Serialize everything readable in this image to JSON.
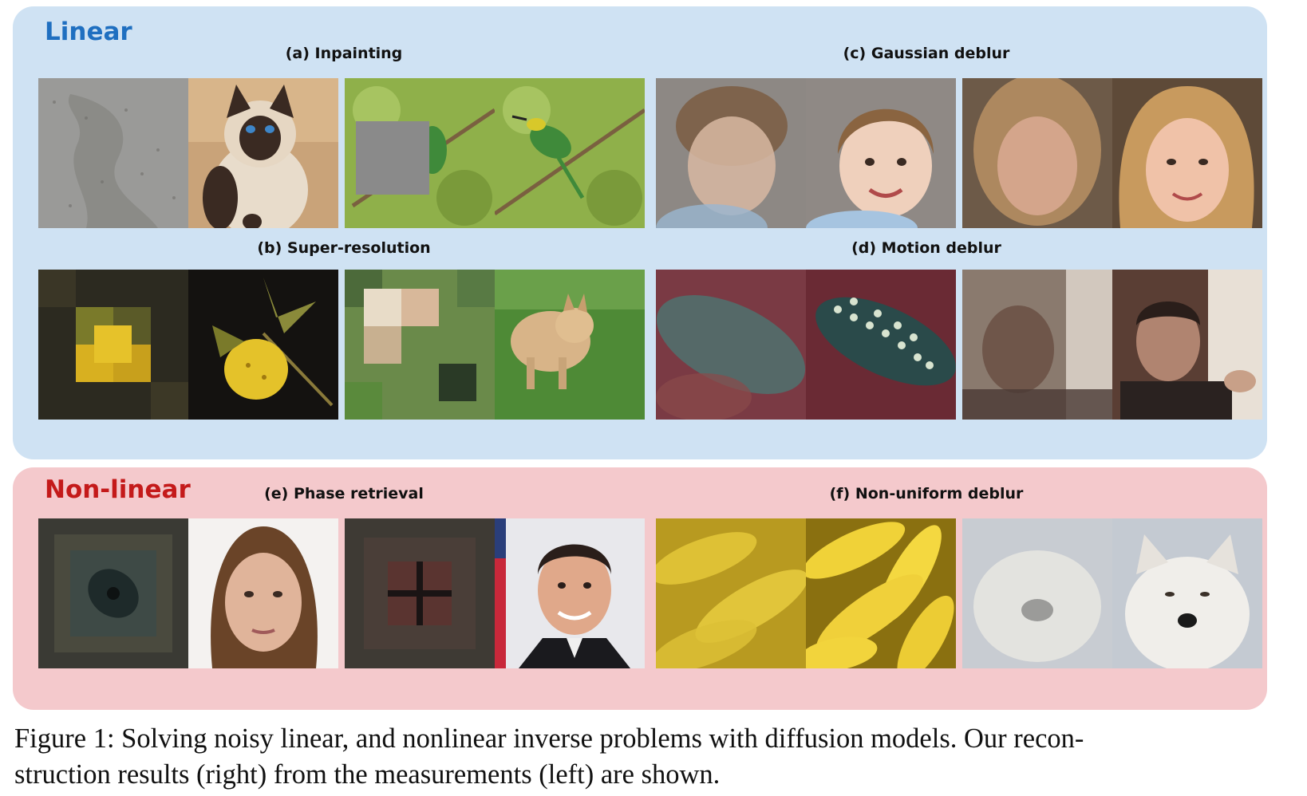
{
  "panels": {
    "linear": {
      "title": "Linear"
    },
    "nonlinear": {
      "title": "Non-linear"
    }
  },
  "tasks": {
    "a": "(a) Inpainting",
    "b": "(b) Super-resolution",
    "c": "(c) Gaussian deblur",
    "d": "(d) Motion deblur",
    "e": "(e) Phase retrieval",
    "f": "(f) Non-uniform deblur"
  },
  "caption": {
    "line1": "Figure 1: Solving noisy linear, and nonlinear inverse problems with diffusion models. Our recon-",
    "line2": "struction results (right) from the measurements (left) are shown."
  },
  "colors": {
    "linear_bg": "#cfe2f3",
    "nonlinear_bg": "#f4c9cc",
    "linear_title": "#1f6fc0",
    "nonlinear_title": "#c41a1a"
  }
}
